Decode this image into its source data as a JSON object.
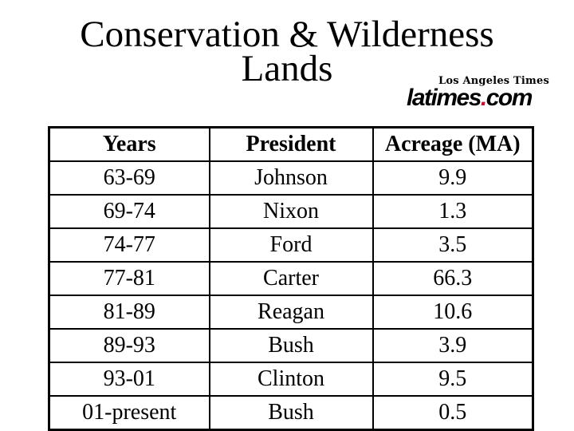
{
  "title": {
    "line1": "Conservation & Wilderness",
    "line2": "Lands"
  },
  "logo": {
    "masthead": "Los Angeles Times",
    "wordmark_prefix": "latimes",
    "wordmark_dot": ".",
    "wordmark_suffix": "com",
    "dot_style": "color:#cc0b2f",
    "dot_color": "#cc0b2f"
  },
  "table": {
    "headers": [
      "Years",
      "President",
      "Acreage (MA)"
    ],
    "rows": [
      [
        "63-69",
        "Johnson",
        "9.9"
      ],
      [
        "69-74",
        "Nixon",
        "1.3"
      ],
      [
        "74-77",
        "Ford",
        "3.5"
      ],
      [
        "77-81",
        "Carter",
        "66.3"
      ],
      [
        "81-89",
        "Reagan",
        "10.6"
      ],
      [
        "89-93",
        "Bush",
        "3.9"
      ],
      [
        "93-01",
        "Clinton",
        "9.5"
      ],
      [
        "01-present",
        "Bush",
        "0.5"
      ]
    ]
  },
  "colors": {
    "background": "#ffffff",
    "text": "#000000",
    "table_border": "#000000"
  }
}
